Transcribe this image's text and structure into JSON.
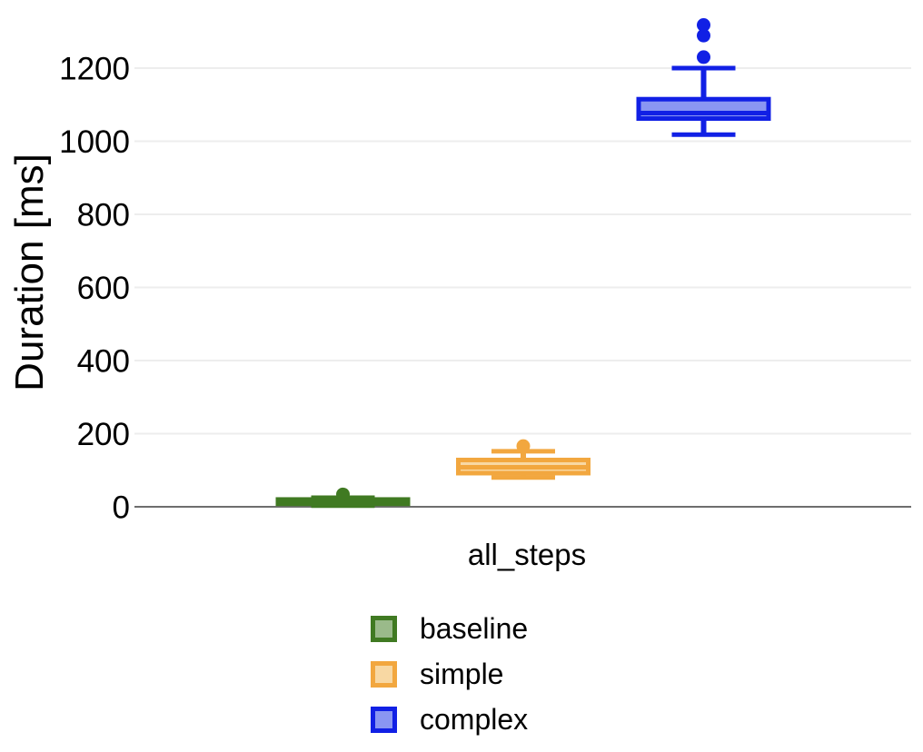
{
  "chart_data": {
    "type": "boxplot",
    "title": "",
    "xlabel": "all_steps",
    "ylabel": "Duration [ms]",
    "categories": [
      "all_steps"
    ],
    "yticks": [
      0,
      200,
      400,
      600,
      800,
      1000,
      1200
    ],
    "ylim": [
      0,
      1385
    ],
    "grid": "horizontal",
    "grid_color": "#ededed",
    "axis_color": "#6e6e6e",
    "legend_position": "bottom",
    "series": [
      {
        "name": "baseline",
        "color": "#407a22",
        "fill": "#9aba8a",
        "box": {
          "whisker_low": 3,
          "q1": 8,
          "median": 13,
          "q3": 20,
          "whisker_high": 25,
          "outliers": [
            34
          ]
        }
      },
      {
        "name": "simple",
        "color": "#f2a73f",
        "fill": "#f8d8a3",
        "box": {
          "whisker_low": 80,
          "q1": 92,
          "median": 108,
          "q3": 128,
          "whisker_high": 152,
          "outliers": [
            166
          ]
        }
      },
      {
        "name": "complex",
        "color": "#1120e5",
        "fill": "#8a96f2",
        "box": {
          "whisker_low": 1018,
          "q1": 1062,
          "median": 1077,
          "q3": 1115,
          "whisker_high": 1200,
          "outliers": [
            1230,
            1289,
            1318
          ]
        }
      }
    ]
  }
}
